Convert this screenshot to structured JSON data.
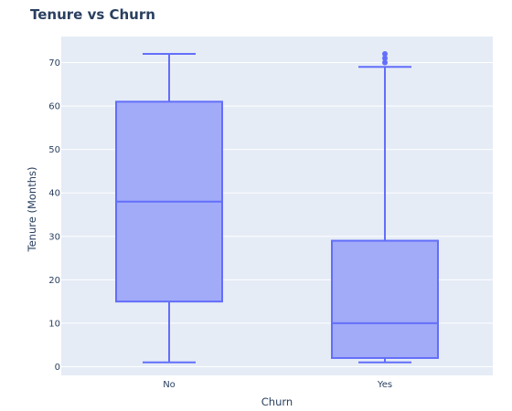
{
  "chart_data": {
    "type": "box",
    "title": "Tenure vs Churn",
    "xlabel": "Churn",
    "ylabel": "Tenure (Months)",
    "categories": [
      "No",
      "Yes"
    ],
    "boxes": [
      {
        "category": "No",
        "min": 1,
        "q1": 15,
        "median": 38,
        "q3": 61,
        "max": 72,
        "outliers": []
      },
      {
        "category": "Yes",
        "min": 1,
        "q1": 2,
        "median": 10,
        "q3": 29,
        "max": 69,
        "outliers": [
          70,
          71,
          72
        ]
      }
    ],
    "y_ticks": [
      0,
      10,
      20,
      30,
      40,
      50,
      60,
      70
    ],
    "ylim": [
      -2,
      76
    ],
    "grid": true,
    "legend": "none",
    "colors": {
      "plot_bg": "#e5ecf6",
      "box_fill": "#a2abf8",
      "box_line": "#636efa",
      "grid": "#ffffff",
      "text": "#2a3f5f"
    }
  }
}
